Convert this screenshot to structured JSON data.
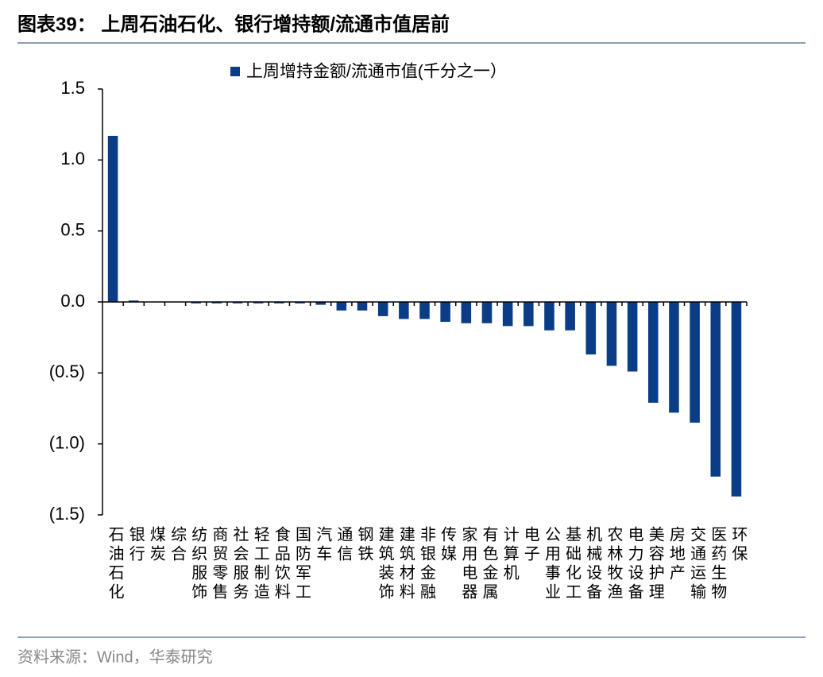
{
  "chart_data": {
    "type": "bar",
    "title": "图表39：  上周石油石化、银行增持额/流通市值居前",
    "source": "资料来源：Wind，华泰研究",
    "categories": [
      "石油石化",
      "银行",
      "煤炭",
      "综合",
      "纺织服饰",
      "商贸零售",
      "社会服务",
      "轻工制造",
      "食品饮料",
      "国防军工",
      "汽车",
      "通信",
      "钢铁",
      "建筑装饰",
      "建筑材料",
      "非银金融",
      "传媒",
      "家用电器",
      "有色金属",
      "计算机",
      "电子",
      "公用事业",
      "基础化工",
      "机械设备",
      "农林牧渔",
      "电力设备",
      "美容护理",
      "房地产",
      "交通运输",
      "医药生物",
      "环保"
    ],
    "series": [
      {
        "name": "上周增持金额/流通市值(千分之一）",
        "color": "#0a3d85",
        "values": [
          1.17,
          0.01,
          0,
          0,
          -0.01,
          -0.01,
          -0.01,
          -0.01,
          -0.01,
          -0.01,
          -0.02,
          -0.06,
          -0.06,
          -0.1,
          -0.12,
          -0.12,
          -0.14,
          -0.15,
          -0.15,
          -0.17,
          -0.17,
          -0.2,
          -0.2,
          -0.37,
          -0.45,
          -0.49,
          -0.71,
          -0.78,
          -0.85,
          -1.23,
          -1.37
        ]
      }
    ],
    "ylim": [
      -1.5,
      1.5
    ],
    "yticks": [
      {
        "value": 1.5,
        "label": "1.5"
      },
      {
        "value": 1.0,
        "label": "1.0"
      },
      {
        "value": 0.5,
        "label": "0.5"
      },
      {
        "value": 0.0,
        "label": "0.0"
      },
      {
        "value": -0.5,
        "label": "(0.5)"
      },
      {
        "value": -1.0,
        "label": "(1.0)"
      },
      {
        "value": -1.5,
        "label": "(1.5)"
      }
    ],
    "legend": "top",
    "grid": false
  }
}
